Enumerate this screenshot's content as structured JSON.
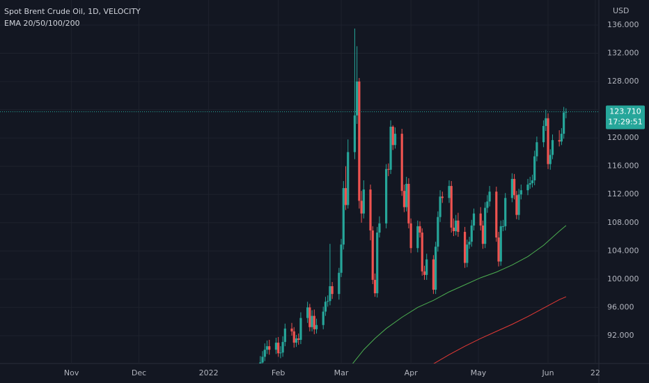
{
  "chart_data": {
    "type": "candlestick",
    "title": "Spot Brent Crude Oil, 1D, VELOCITY",
    "subtitle": "EMA 20/50/100/200",
    "currency": "USD",
    "up_color": "#26a69a",
    "down_color": "#ef5350",
    "grid": true,
    "xlim": [
      -31.8,
      234.6
    ],
    "ylim": [
      88.05,
      139.55
    ],
    "xticks": [
      {
        "value": 0,
        "label": "Nov"
      },
      {
        "value": 30,
        "label": "Dec"
      },
      {
        "value": 61,
        "label": "2022"
      },
      {
        "value": 92,
        "label": "Feb"
      },
      {
        "value": 120,
        "label": "Mar"
      },
      {
        "value": 151,
        "label": "Apr"
      },
      {
        "value": 181,
        "label": "May"
      },
      {
        "value": 212,
        "label": "Jun"
      },
      {
        "value": 233,
        "label": "22"
      }
    ],
    "yticks": [
      {
        "value": 92,
        "label": "92.000"
      },
      {
        "value": 96,
        "label": "96.000"
      },
      {
        "value": 100,
        "label": "100.000"
      },
      {
        "value": 104,
        "label": "104.000"
      },
      {
        "value": 108,
        "label": "108.000"
      },
      {
        "value": 112,
        "label": "112.000"
      },
      {
        "value": 116,
        "label": "116.000"
      },
      {
        "value": 120,
        "label": "120.000"
      },
      {
        "value": 124,
        "label": "124.000"
      },
      {
        "value": 128,
        "label": "128.000"
      },
      {
        "value": 132,
        "label": "132.000"
      },
      {
        "value": 136,
        "label": "136.000"
      }
    ],
    "x": [
      84,
      85,
      86,
      87,
      88,
      91,
      92,
      93,
      94,
      95,
      98,
      99,
      100,
      101,
      102,
      105,
      106,
      107,
      108,
      109,
      112,
      113,
      114,
      115,
      116,
      119,
      120,
      121,
      122,
      123,
      126,
      127,
      128,
      129,
      130,
      133,
      134,
      135,
      136,
      137,
      140,
      141,
      142,
      143,
      144,
      147,
      148,
      149,
      150,
      151,
      154,
      155,
      156,
      157,
      158,
      161,
      162,
      163,
      164,
      165,
      168,
      169,
      170,
      171,
      172,
      175,
      176,
      177,
      178,
      179,
      182,
      183,
      184,
      185,
      186,
      189,
      190,
      191,
      192,
      193,
      196,
      197,
      198,
      199,
      200,
      203,
      204,
      205,
      206,
      207,
      210,
      211,
      212,
      213,
      214,
      217,
      218,
      219,
      220
    ],
    "open": [
      87.5,
      88.2,
      89.0,
      90.0,
      90.5,
      90.0,
      91.0,
      89.5,
      89.6,
      91.1,
      93.0,
      92.6,
      91.0,
      91.6,
      91.4,
      94.5,
      96.0,
      93.2,
      94.8,
      92.9,
      93.5,
      95.4,
      96.8,
      96.9,
      99.0,
      97.9,
      100.9,
      104.9,
      112.9,
      110.5,
      118.0,
      123.2,
      128.0,
      111.1,
      109.3,
      112.7,
      106.9,
      99.9,
      98.0,
      106.6,
      107.9,
      115.6,
      115.5,
      121.6,
      119.0,
      120.6,
      112.5,
      110.2,
      113.5,
      107.9,
      104.4,
      107.5,
      106.6,
      101.1,
      100.6,
      102.8,
      98.5,
      104.6,
      108.8,
      111.7,
      111.5,
      113.2,
      107.3,
      106.8,
      108.3,
      106.7,
      102.3,
      104.9,
      105.3,
      107.6,
      109.3,
      107.6,
      105.0,
      110.1,
      111.0,
      112.4,
      105.9,
      102.5,
      107.5,
      107.5,
      111.5,
      114.2,
      111.9,
      109.1,
      112.0,
      112.6,
      113.4,
      113.6,
      114.0,
      117.4,
      119.4,
      121.7,
      122.8,
      116.3,
      117.6,
      119.7,
      119.5,
      120.6,
      123.6
    ],
    "high": [
      89.1,
      89.8,
      90.9,
      91.3,
      91.4,
      91.7,
      91.8,
      90.5,
      91.9,
      93.7,
      93.8,
      93.2,
      92.1,
      92.3,
      95.3,
      96.8,
      96.5,
      95.6,
      95.7,
      94.4,
      96.1,
      97.5,
      97.7,
      105.0,
      99.6,
      101.6,
      105.7,
      113.9,
      116.0,
      119.8,
      135.5,
      133.0,
      128.5,
      112.5,
      114.0,
      113.4,
      107.5,
      100.8,
      107.4,
      108.9,
      116.3,
      116.4,
      122.5,
      121.8,
      121.5,
      121.3,
      113.4,
      114.5,
      114.3,
      108.6,
      108.3,
      108.2,
      107.2,
      101.9,
      103.6,
      103.4,
      105.3,
      109.6,
      112.6,
      112.4,
      114.0,
      113.9,
      108.6,
      109.1,
      109.4,
      107.4,
      105.6,
      106.0,
      108.4,
      110.0,
      110.2,
      108.3,
      110.9,
      111.9,
      113.2,
      113.1,
      106.7,
      108.3,
      108.4,
      112.2,
      115.0,
      114.9,
      112.5,
      112.8,
      113.4,
      114.2,
      114.5,
      114.8,
      118.2,
      120.2,
      122.5,
      124.0,
      123.5,
      118.4,
      120.5,
      121.1,
      121.4,
      124.4,
      124.2
    ],
    "low": [
      86.9,
      87.6,
      88.4,
      89.4,
      89.3,
      89.4,
      89.0,
      88.8,
      89.0,
      90.5,
      92.0,
      90.3,
      90.4,
      90.7,
      90.8,
      93.8,
      92.6,
      92.6,
      92.2,
      92.3,
      92.9,
      94.8,
      96.1,
      96.3,
      97.2,
      97.1,
      100.3,
      104.2,
      109.8,
      110.0,
      117.0,
      122.0,
      110.0,
      108.0,
      108.6,
      105.5,
      99.3,
      97.5,
      97.4,
      105.9,
      107.2,
      114.6,
      114.9,
      118.3,
      118.5,
      111.8,
      109.5,
      109.6,
      107.2,
      103.7,
      103.8,
      105.9,
      100.5,
      99.9,
      99.9,
      97.9,
      97.9,
      103.9,
      108.1,
      110.8,
      110.8,
      106.6,
      106.1,
      106.2,
      106.0,
      101.6,
      101.7,
      104.3,
      104.6,
      106.9,
      106.9,
      104.3,
      104.4,
      109.4,
      110.3,
      105.3,
      101.8,
      101.9,
      106.8,
      106.9,
      110.9,
      111.3,
      108.5,
      108.4,
      111.3,
      111.9,
      112.8,
      113.0,
      113.3,
      116.7,
      118.7,
      121.0,
      115.6,
      115.5,
      117.0,
      118.8,
      119.0,
      119.9,
      122.8
    ],
    "close": [
      88.2,
      89.0,
      90.0,
      90.5,
      90.0,
      91.0,
      89.5,
      89.6,
      91.1,
      93.0,
      92.6,
      91.0,
      91.6,
      91.4,
      94.5,
      96.0,
      93.2,
      94.8,
      92.9,
      93.5,
      95.4,
      96.8,
      96.9,
      99.0,
      97.9,
      100.9,
      104.9,
      112.9,
      110.5,
      118.0,
      123.2,
      128.0,
      111.1,
      109.3,
      112.7,
      106.9,
      99.9,
      98.0,
      106.6,
      107.9,
      115.6,
      115.5,
      121.6,
      119.0,
      120.6,
      112.5,
      110.2,
      113.5,
      107.9,
      104.4,
      107.5,
      106.6,
      101.1,
      100.6,
      102.8,
      98.5,
      104.6,
      108.8,
      111.7,
      111.5,
      113.2,
      107.3,
      106.8,
      108.3,
      106.7,
      102.3,
      104.9,
      105.3,
      107.6,
      109.3,
      107.6,
      105.0,
      110.1,
      111.0,
      112.4,
      105.9,
      102.5,
      107.5,
      107.5,
      111.5,
      114.2,
      111.9,
      109.1,
      112.0,
      112.6,
      113.4,
      113.6,
      114.0,
      117.4,
      119.4,
      121.7,
      122.8,
      116.3,
      117.6,
      119.7,
      119.5,
      120.6,
      123.6,
      123.7
    ],
    "lines": [
      {
        "color": "#4caf50",
        "x": [
          125,
          130,
          135,
          140,
          147,
          154,
          161,
          168,
          175,
          182,
          189,
          196,
          203,
          210,
          217,
          220
        ],
        "values": [
          88.0,
          90.0,
          91.6,
          93.0,
          94.6,
          96.0,
          97.0,
          98.2,
          99.2,
          100.2,
          101.0,
          102.0,
          103.2,
          104.8,
          106.8,
          107.6
        ]
      },
      {
        "color": "#e53935",
        "x": [
          161,
          168,
          175,
          182,
          189,
          196,
          203,
          210,
          217,
          220
        ],
        "values": [
          88.0,
          89.3,
          90.5,
          91.6,
          92.6,
          93.6,
          94.7,
          95.9,
          97.1,
          97.5
        ]
      }
    ],
    "last_price": {
      "value": 123.71,
      "label": "123.710"
    },
    "countdown": "17:29:51"
  }
}
